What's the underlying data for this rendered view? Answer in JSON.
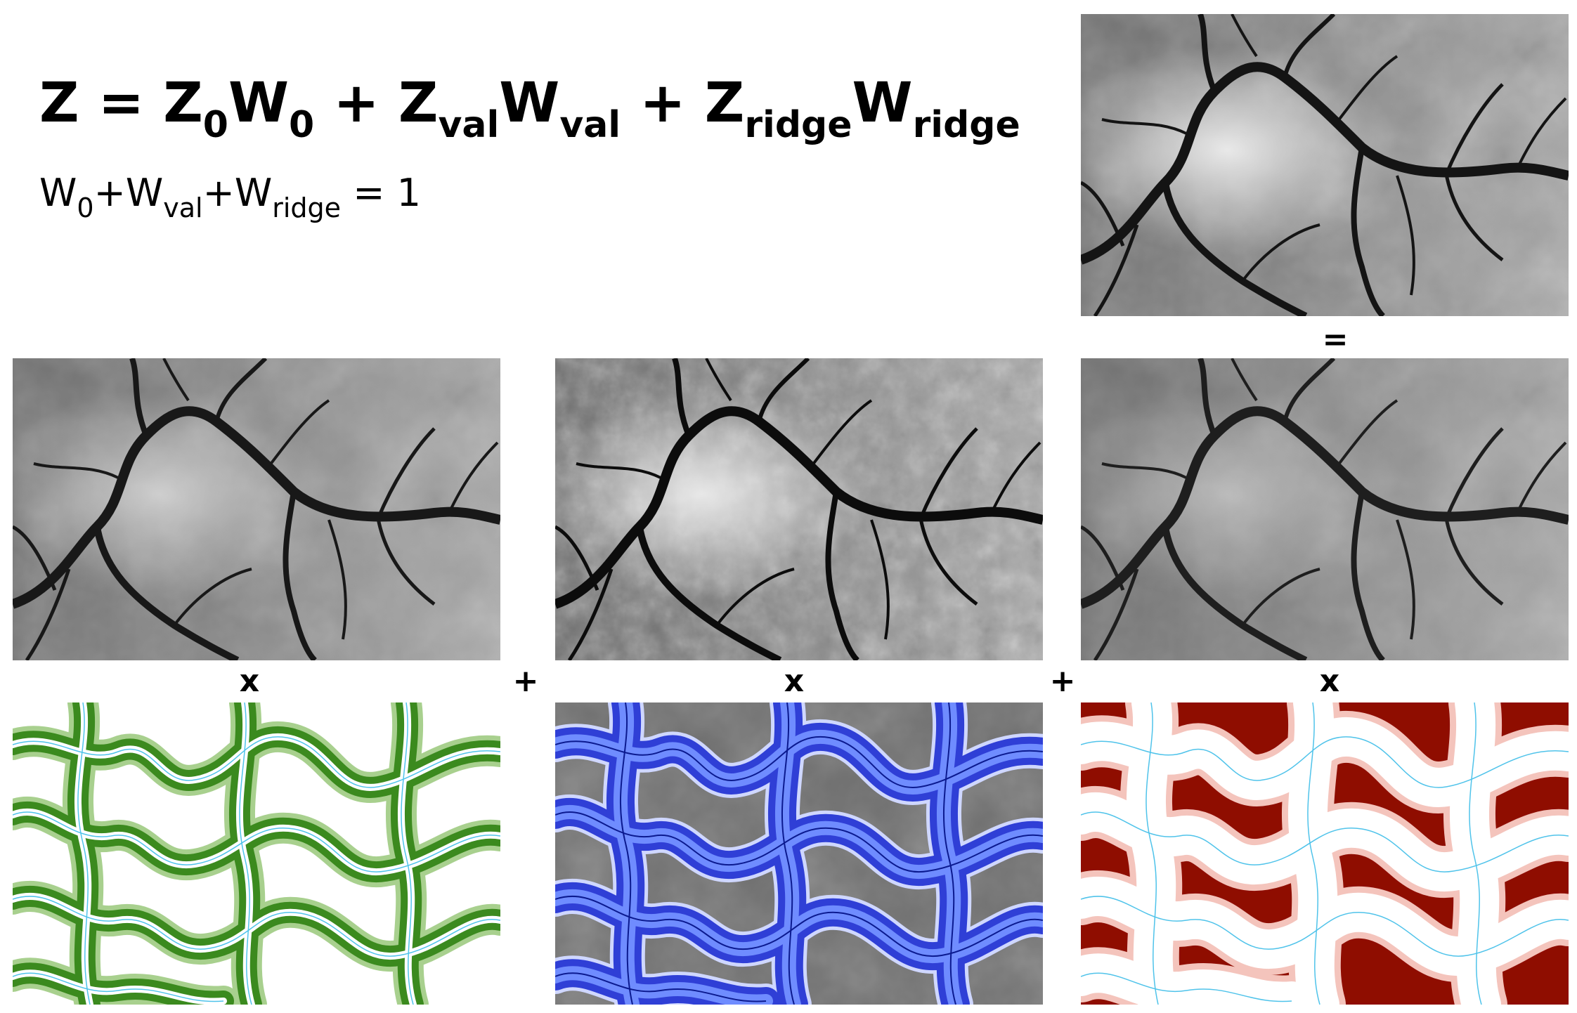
{
  "formula": {
    "z": "Z",
    "eq": "=",
    "t1_var": "Z",
    "t1_sub": "0",
    "t1_w": "W",
    "t1_wsub": "0",
    "plus1": "+",
    "t2_var": "Z",
    "t2_sub": "val",
    "t2_w": "W",
    "t2_wsub": "val",
    "plus2": "+",
    "t3_var": "Z",
    "t3_sub": "ridge",
    "t3_w": "W",
    "t3_wsub": "ridge"
  },
  "constraint": {
    "w1": "W",
    "w1_sub": "0",
    "plus1": "+",
    "w2": "W",
    "w2_sub": "val",
    "plus2": "+",
    "w3": "W",
    "w3_sub": "ridge",
    "rest": " = 1"
  },
  "operators": {
    "equals": "=",
    "times_1": "x",
    "plus_1": "+",
    "times_2": "x",
    "plus_2": "+",
    "times_3": "x"
  },
  "colors": {
    "valley_weight": "#3b8a1e",
    "valley_stream": "#2f3fd6",
    "ridge_weight": "#8f0d00",
    "stream_line": "#4fc3ea",
    "dem_dark": "#101010",
    "dem_light": "#e8e8e8"
  }
}
